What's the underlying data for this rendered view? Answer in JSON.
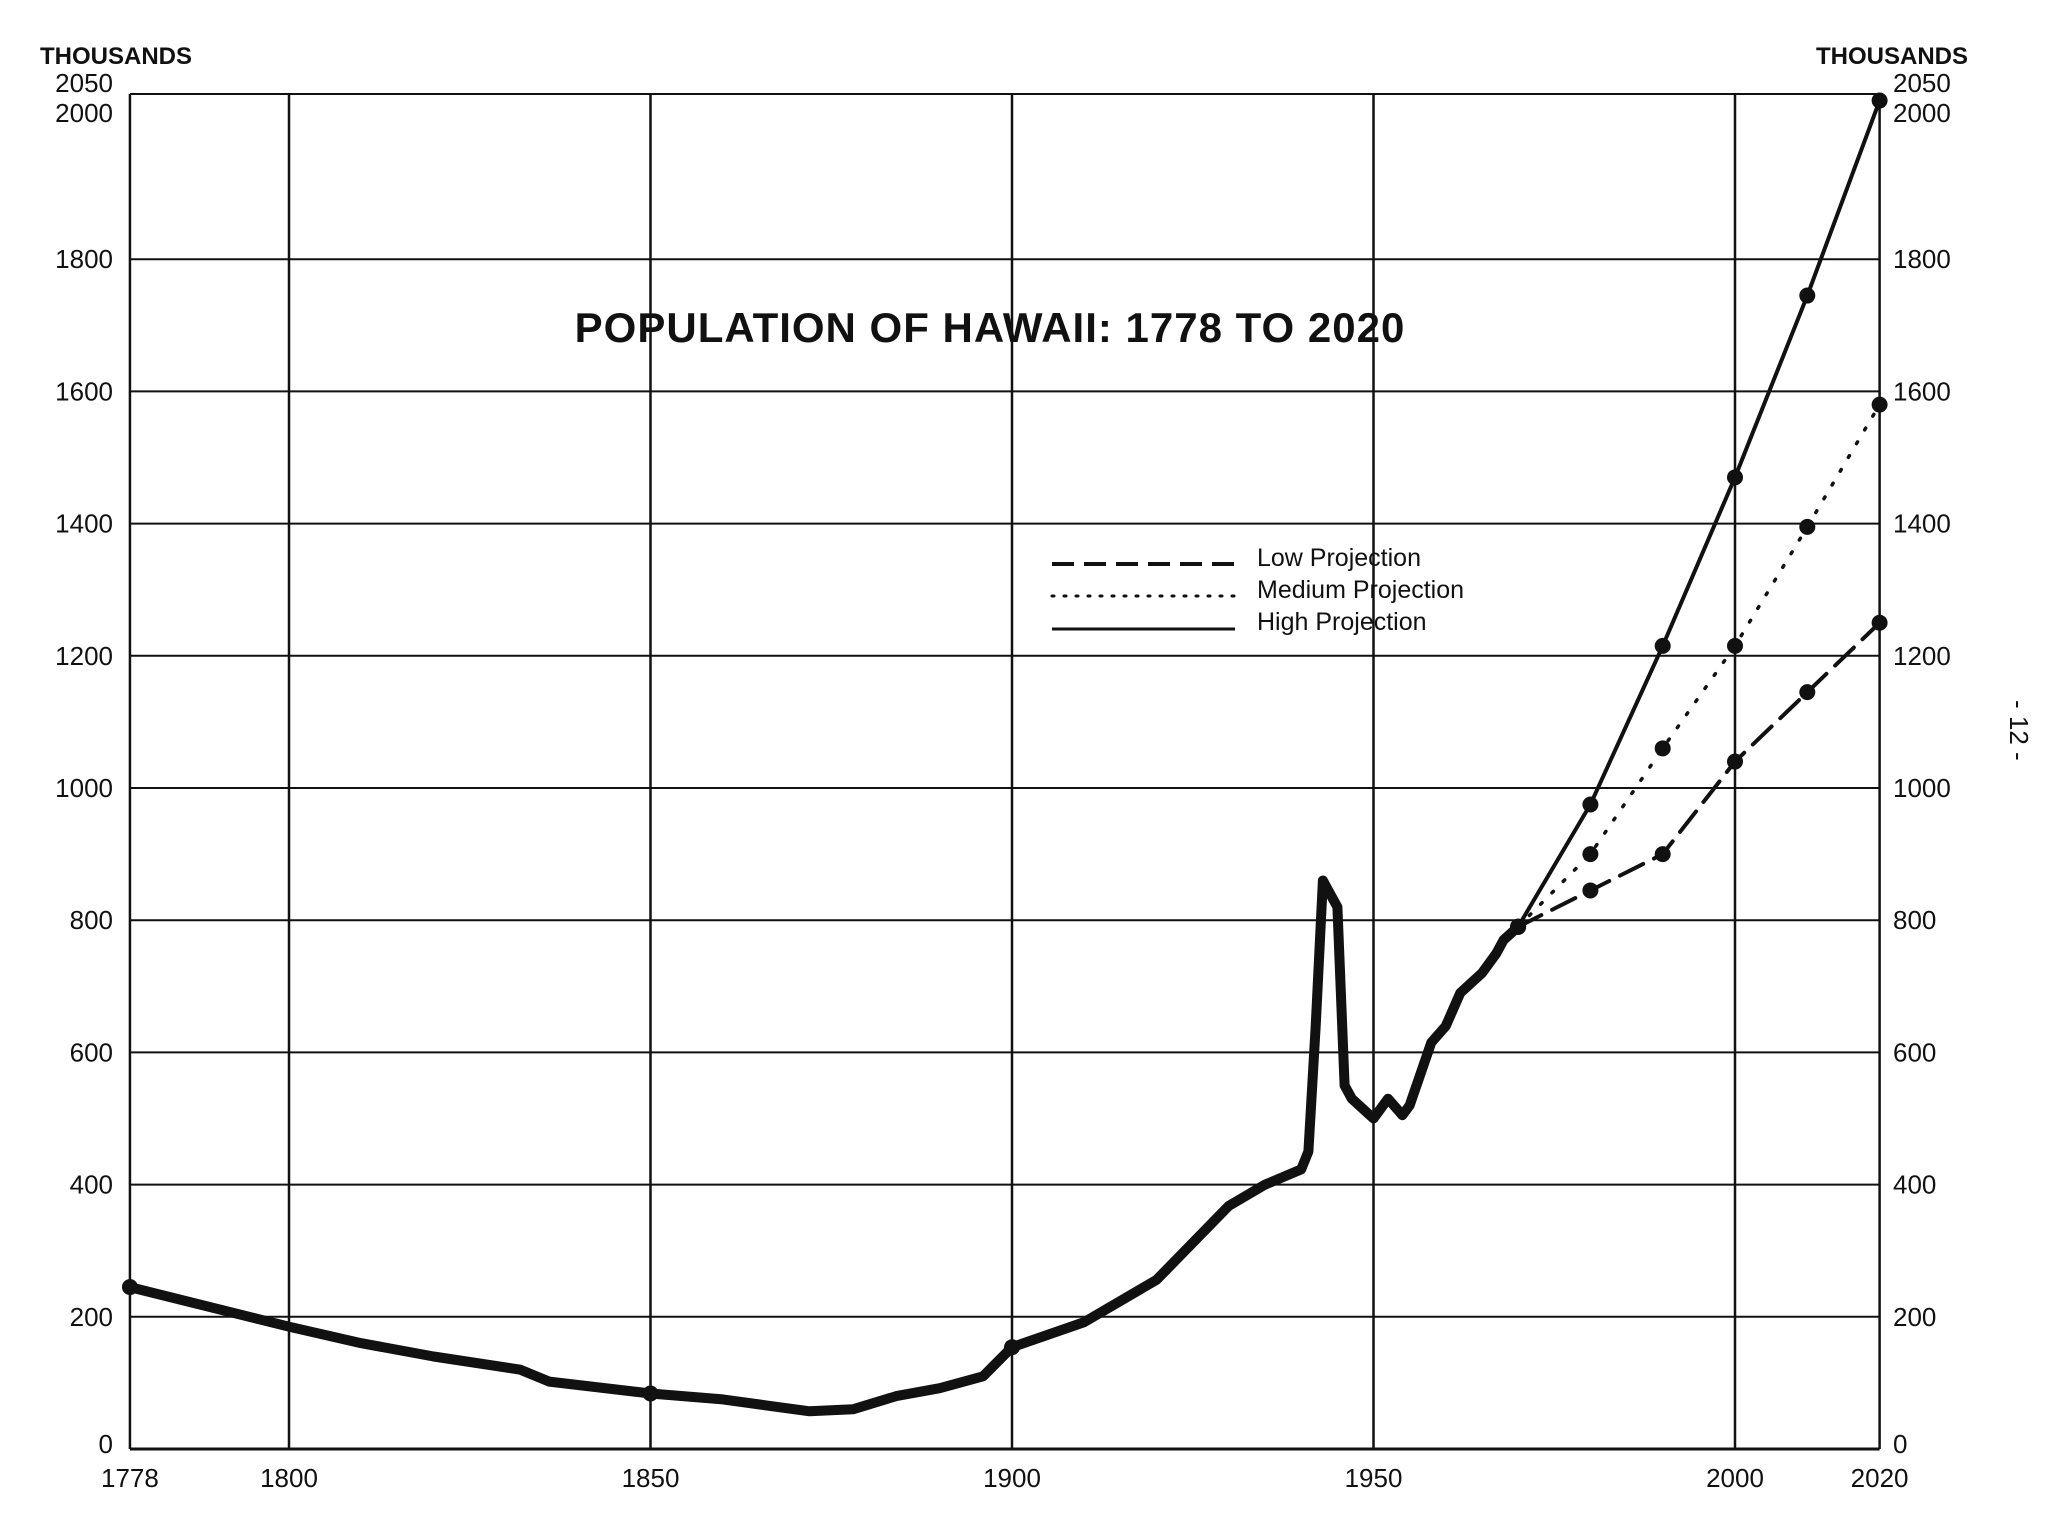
{
  "chart_data": {
    "type": "line",
    "title": "POPULATION OF HAWAII: 1778 TO 2020",
    "ylabel_left": "THOUSANDS",
    "ylabel_right": "THOUSANDS",
    "xlim": [
      1778,
      2020
    ],
    "ylim": [
      0,
      2050
    ],
    "x_ticks": [
      1778,
      1800,
      1850,
      1900,
      1950,
      2000,
      2020
    ],
    "y_ticks": [
      0,
      200,
      400,
      600,
      800,
      1000,
      1200,
      1400,
      1600,
      1800,
      2000,
      2050
    ],
    "grid": true,
    "legend_placement": "center-right",
    "legend": [
      "Low Projection",
      "Medium Projection",
      "High Projection"
    ],
    "historical": {
      "x": [
        1778,
        1800,
        1810,
        1820,
        1832,
        1836,
        1850,
        1860,
        1866,
        1872,
        1878,
        1884,
        1890,
        1896,
        1900,
        1910,
        1920,
        1930,
        1935,
        1940,
        1941,
        1942,
        1943,
        1944,
        1945,
        1946,
        1947,
        1949,
        1950,
        1952,
        1954,
        1955,
        1958,
        1960,
        1962,
        1963,
        1965,
        1967,
        1968,
        1970
      ],
      "y": [
        245,
        185,
        160,
        140,
        120,
        102,
        84,
        75,
        66,
        57,
        60,
        80,
        92,
        110,
        154,
        192,
        256,
        368,
        400,
        423,
        450,
        640,
        860,
        840,
        820,
        550,
        530,
        510,
        500,
        530,
        505,
        520,
        615,
        640,
        690,
        700,
        720,
        750,
        770,
        790
      ]
    },
    "series": [
      {
        "name": "Low Projection",
        "style": "dashed",
        "x": [
          1970,
          1980,
          1990,
          2000,
          2010,
          2020
        ],
        "y": [
          790,
          845,
          900,
          1040,
          1145,
          1250
        ]
      },
      {
        "name": "Medium Projection",
        "style": "dotted",
        "x": [
          1970,
          1980,
          1990,
          2000,
          2010,
          2020
        ],
        "y": [
          790,
          900,
          1060,
          1215,
          1395,
          1580
        ]
      },
      {
        "name": "High Projection",
        "style": "solid",
        "x": [
          1970,
          1980,
          1990,
          2000,
          2010,
          2020
        ],
        "y": [
          790,
          975,
          1215,
          1470,
          1745,
          2040
        ]
      }
    ],
    "page_number": "- 12 -"
  }
}
